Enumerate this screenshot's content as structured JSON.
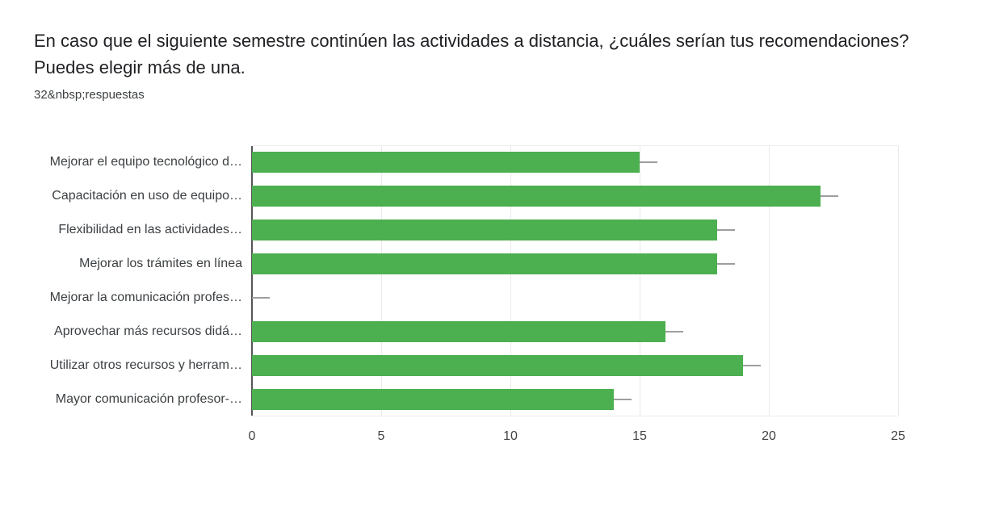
{
  "header": {
    "title": "En caso que el siguiente semestre continúen las actividades a distancia, ¿cuáles serían tus recomendaciones? Puedes elegir más de una.",
    "responses": "32&nbsp;respuestas"
  },
  "chart_data": {
    "type": "bar",
    "orientation": "horizontal",
    "title": "En caso que el siguiente semestre continúen las actividades a distancia, ¿cuáles serían tus recomendaciones? Puedes elegir más de una.",
    "subtitle": "32&nbsp;respuestas",
    "categories": [
      "Mejorar el equipo tecnológico d…",
      "Capacitación en uso de equipo…",
      "Flexibilidad en las actividades…",
      "Mejorar los trámites en línea",
      "Mejorar la comunicación profes…",
      "Aprovechar más recursos didá…",
      "Utilizar otros recursos y herram…",
      "Mayor comunicación profesor-…"
    ],
    "values": [
      15,
      22,
      18,
      18,
      0,
      16,
      19,
      14
    ],
    "xlabel": "",
    "ylabel": "",
    "xlim": [
      0,
      25
    ],
    "xticks": [
      0,
      5,
      10,
      15,
      20,
      25
    ],
    "grid": true,
    "legend": "none",
    "bar_color": "#4caf50",
    "whisker_color": "#9e9e9e"
  }
}
